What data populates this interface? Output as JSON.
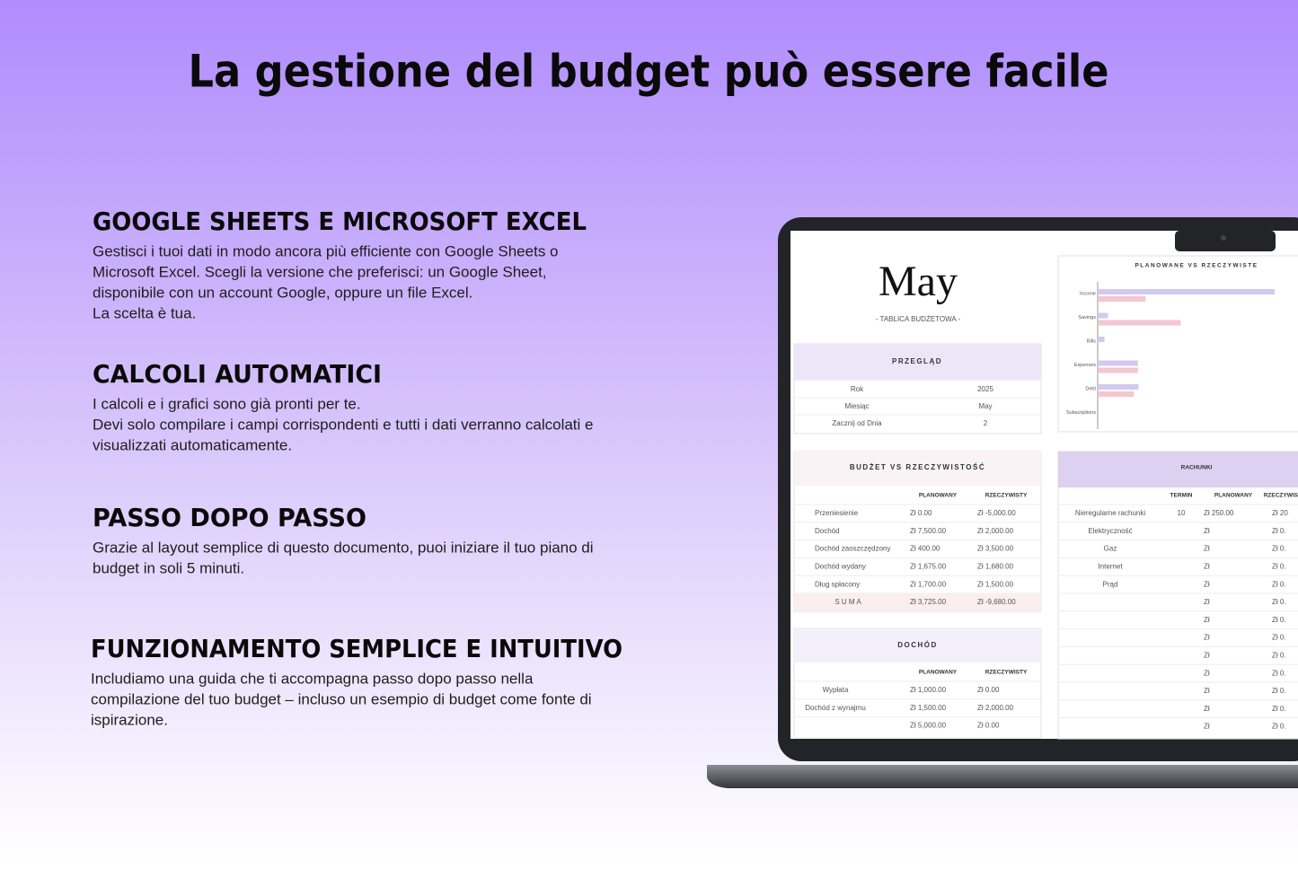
{
  "title": "La gestione del budget può essere facile",
  "sections": [
    {
      "heading": "GOOGLE SHEETS E MICROSOFT EXCEL",
      "lines": [
        "Gestisci i tuoi dati in modo ancora più efficiente con Google Sheets o",
        "Microsoft Excel. Scegli la versione che preferisci: un Google Sheet,",
        "disponibile con un account Google, oppure un file Excel.",
        "La scelta è tua."
      ]
    },
    {
      "heading": "CALCOLI AUTOMATICI",
      "lines": [
        "I calcoli e i grafici sono già pronti per te.",
        "Devi solo compilare i campi corrispondenti e tutti i dati verranno calcolati e",
        "visualizzati automaticamente."
      ]
    },
    {
      "heading": "PASSO DOPO PASSO",
      "lines": [
        "Grazie al layout semplice di questo documento, puoi iniziare il tuo piano di",
        "budget in soli 5 minuti."
      ]
    },
    {
      "heading": "FUNZIONAMENTO SEMPLICE E INTUITIVO",
      "lines": [
        "Includiamo una guida che ti accompagna passo dopo passo nella",
        "compilazione del tuo budget – incluso un esempio di budget come fonte di",
        "ispirazione."
      ]
    }
  ],
  "sheet": {
    "month": "May",
    "subtitle": "- TABLICA BUDŻETOWA -",
    "overview": {
      "title": "PRZEGLĄD",
      "rows": [
        [
          "Rok",
          "2025"
        ],
        [
          "Miesiąc",
          "May"
        ],
        [
          "Zacznij od Dnia",
          "2"
        ]
      ]
    },
    "budget": {
      "title": "BUDŻET VS RZECZYWISTOŚĆ",
      "columns": [
        "PLANOWANY",
        "RZECZYWISTY"
      ],
      "rows": [
        [
          "Przeniesienie",
          "Zł 0.00",
          "Zł -5,000.00"
        ],
        [
          "Dochód",
          "Zł 7,500.00",
          "Zł 2,000.00"
        ],
        [
          "Dochód zaoszczędzony",
          "Zł 400.00",
          "Zł 3,500.00"
        ],
        [
          "Dochód wydany",
          "Zł 1,675.00",
          "Zł 1,680.00"
        ],
        [
          "Dług spłacony",
          "Zł 1,700.00",
          "Zł 1,500.00"
        ],
        [
          "S U M A",
          "Zł 3,725.00",
          "Zł -9,680.00"
        ]
      ]
    },
    "income": {
      "title": "DOCHÓD",
      "columns": [
        "PLANOWANY",
        "RZECZYWISTY"
      ],
      "rows": [
        [
          "Wypłata",
          "Zł 1,000.00",
          "Zł 0.00"
        ],
        [
          "Dochód z wynajmu",
          "Zł 1,500.00",
          "Zł 2,000.00"
        ],
        [
          null,
          "Zł 5,000.00",
          "Zł 0.00"
        ]
      ]
    },
    "bills": {
      "title": "RACHUNKI",
      "columns": [
        "TERMIN",
        "PLANOWANY",
        "RZECZYWISTY"
      ],
      "rows": [
        [
          "Nieregularne rachunki",
          "10",
          "Zł 250.00",
          "Zł 20"
        ],
        [
          "Elektryczność",
          null,
          "Zł",
          "Zł 0."
        ],
        [
          "Gaz",
          null,
          "Zł",
          "Zł 0."
        ],
        [
          "Internet",
          null,
          "Zł",
          "Zł 0."
        ],
        [
          "Prąd",
          null,
          "Zł",
          "Zł 0."
        ],
        [
          null,
          null,
          "Zł",
          "Zł 0."
        ],
        [
          null,
          null,
          "Zł",
          "Zł 0."
        ],
        [
          null,
          null,
          "Zł",
          "Zł 0."
        ],
        [
          null,
          null,
          "Zł",
          "Zł 0."
        ],
        [
          null,
          null,
          "Zł",
          "Zł 0."
        ],
        [
          null,
          null,
          "Zł",
          "Zł 0."
        ],
        [
          null,
          null,
          "Zł",
          "Zł 0."
        ],
        [
          null,
          null,
          "Zł",
          "Zł 0."
        ]
      ]
    }
  },
  "chart_data": {
    "type": "bar",
    "orientation": "horizontal",
    "title": "PLANOWANE VS RZECZYWISTE",
    "categories": [
      "Income",
      "Savings",
      "Bills",
      "Expenses",
      "Debt",
      "Subscriptions"
    ],
    "series": [
      {
        "color": "#d3c9f0",
        "values": [
          7500,
          400,
          250,
          1675,
          1700,
          0
        ]
      },
      {
        "color": "#f5c6d0",
        "values": [
          2000,
          3500,
          0,
          1680,
          1500,
          0
        ]
      }
    ]
  }
}
